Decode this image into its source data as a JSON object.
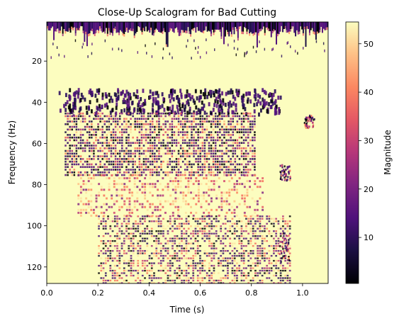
{
  "chart_data": {
    "type": "heatmap",
    "title": "Close-Up Scalogram for Bad Cutting",
    "xlabel": "Time (s)",
    "ylabel": "Frequency (Hz)",
    "xlim": [
      0.0,
      1.1
    ],
    "ylim": [
      128,
      1
    ],
    "y_inverted": true,
    "x_ticks": [
      0.0,
      0.2,
      0.4,
      0.6,
      0.8,
      1.0
    ],
    "x_tick_labels": [
      "0.0",
      "0.2",
      "0.4",
      "0.6",
      "0.8",
      "1.0"
    ],
    "y_ticks": [
      20,
      40,
      60,
      80,
      100,
      120
    ],
    "y_tick_labels": [
      "20",
      "40",
      "60",
      "80",
      "100",
      "120"
    ],
    "grid": false,
    "colormap": "magma",
    "colorbar": {
      "label": "Magnitude",
      "range": [
        0.5,
        54.5
      ],
      "ticks": [
        10,
        20,
        30,
        40,
        50
      ],
      "tick_labels": [
        "10",
        "20",
        "30",
        "40",
        "50"
      ]
    },
    "features": [
      {
        "region": "top band",
        "frequency_range_hz": [
          1,
          12
        ],
        "time_range_s": [
          0.0,
          1.1
        ],
        "magnitude": "low (dark)"
      },
      {
        "region": "first row of dark blobs",
        "frequency_range_hz": [
          32,
          46
        ],
        "time_range_s": [
          0.07,
          0.82
        ],
        "magnitude": "very low"
      },
      {
        "region": "dense striated mid band",
        "frequency_range_hz": [
          46,
          75
        ],
        "time_range_s": [
          0.07,
          0.81
        ],
        "magnitude": "low to medium"
      },
      {
        "region": "right isolated blobs",
        "frequency_range_hz": [
          45,
          85
        ],
        "time_range_s": [
          0.92,
          1.04
        ],
        "magnitude": "low"
      },
      {
        "region": "lower band",
        "frequency_range_hz": [
          95,
          128
        ],
        "time_range_s": [
          0.2,
          0.95
        ],
        "magnitude": "low to medium"
      }
    ]
  }
}
